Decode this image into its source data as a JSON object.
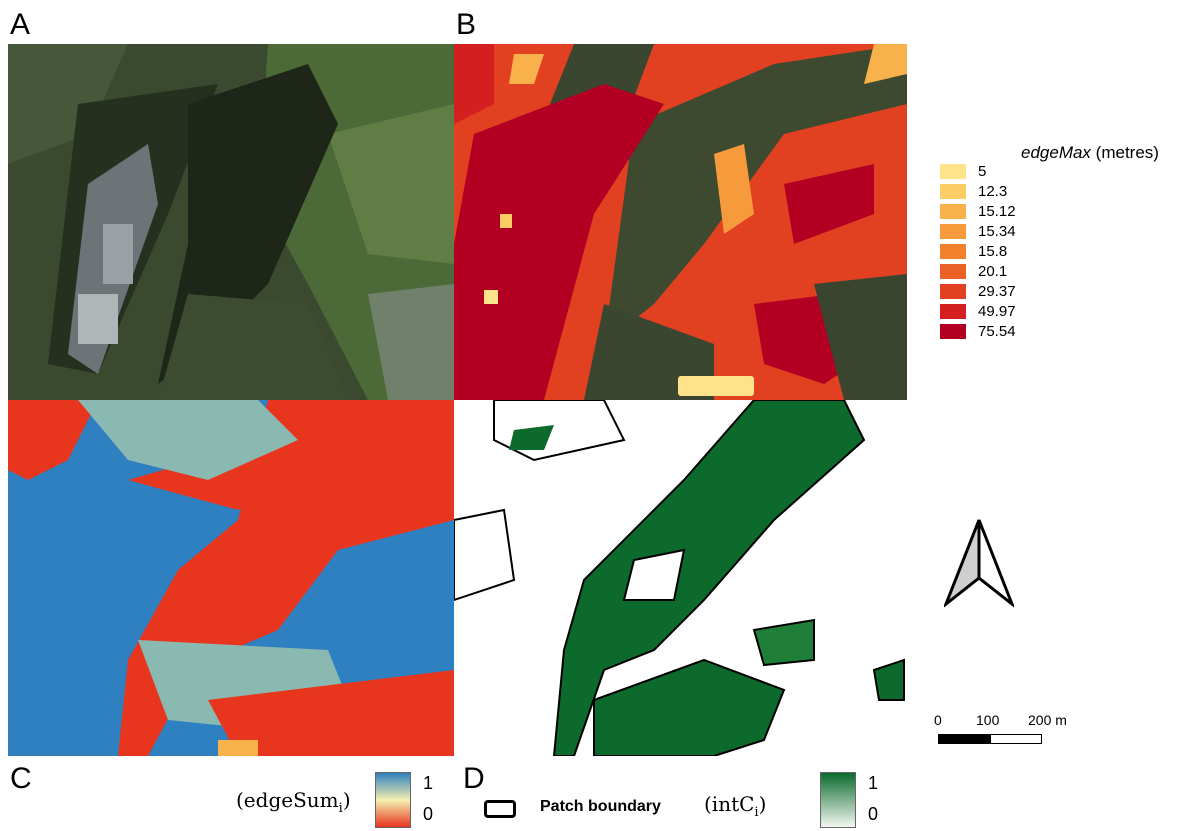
{
  "panels": {
    "a_label": "A",
    "b_label": "B",
    "c_label": "C",
    "d_label": "D"
  },
  "edge_max_legend": {
    "title_italic": "edgeMax",
    "title_unit": "(metres)",
    "items": [
      {
        "label": "5",
        "color": "#fde38a"
      },
      {
        "label": "12.3",
        "color": "#fbcd64"
      },
      {
        "label": "15.12",
        "color": "#f9b24b"
      },
      {
        "label": "15.34",
        "color": "#f79a3b"
      },
      {
        "label": "15.8",
        "color": "#f2812e"
      },
      {
        "label": "20.1",
        "color": "#ec6126"
      },
      {
        "label": "29.37",
        "color": "#e24121"
      },
      {
        "label": "49.97",
        "color": "#d31f1f"
      },
      {
        "label": "75.54",
        "color": "#b30022"
      }
    ]
  },
  "edge_sum_legend": {
    "symbol": "(edgeSum",
    "subscript": "i",
    "close": ")",
    "max_label": "1",
    "min_label": "0",
    "top_color": "#2f80c0",
    "mid_color": "#f4f0b0",
    "bottom_color": "#e8351e"
  },
  "int_c_legend": {
    "symbol": "(intC",
    "subscript": "i",
    "close": ")",
    "max_label": "1",
    "min_label": "0",
    "top_color": "#0b6a2c",
    "bottom_color": "#f2f8f0"
  },
  "patch_legend": {
    "label": "Patch boundary"
  },
  "scale_bar": {
    "labels": [
      "0",
      "100",
      "200 m"
    ]
  },
  "north_arrow": {
    "icon": "north-arrow-icon"
  }
}
